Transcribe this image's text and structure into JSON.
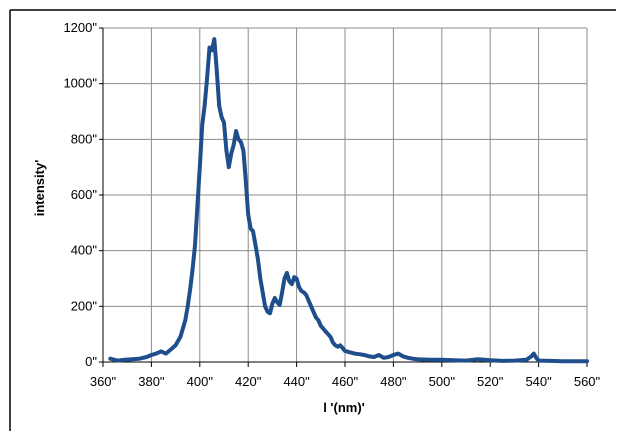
{
  "chart_data": {
    "type": "line",
    "title": "",
    "xlabel": "l '(nm)'",
    "ylabel": "intensity'",
    "xlim": [
      360,
      560
    ],
    "ylim": [
      0,
      1200
    ],
    "grid": true,
    "legend": "none",
    "x_ticks": [
      "360\"",
      "380\"",
      "400\"",
      "420\"",
      "440\"",
      "460\"",
      "480\"",
      "500\"",
      "520\"",
      "540\"",
      "560\""
    ],
    "y_ticks": [
      "0\"",
      "200\"",
      "400\"",
      "600\"",
      "800\"",
      "1000\"",
      "1200\""
    ],
    "colors": {
      "series": "#1f4e8c",
      "grid": "#8c8c8c",
      "axis": "#000000"
    },
    "series": [
      {
        "x": [
          363,
          366,
          369,
          372,
          375,
          378,
          380,
          382,
          384,
          386,
          388,
          390,
          392,
          394,
          395,
          396,
          397,
          398,
          399,
          400,
          401,
          402,
          403,
          404,
          405,
          406,
          407,
          408,
          409,
          410,
          411,
          412,
          413,
          414,
          415,
          416,
          417,
          418,
          419,
          420,
          421,
          422,
          423,
          424,
          425,
          426,
          427,
          428,
          429,
          430,
          431,
          432,
          433,
          434,
          435,
          436,
          437,
          438,
          439,
          440,
          441,
          442,
          443,
          444,
          445,
          446,
          447,
          448,
          449,
          450,
          451,
          452,
          453,
          454,
          455,
          456,
          457,
          458,
          459,
          460,
          462,
          464,
          466,
          468,
          470,
          472,
          474,
          476,
          478,
          480,
          482,
          484,
          486,
          488,
          490,
          495,
          500,
          505,
          510,
          515,
          520,
          525,
          530,
          535,
          537,
          538,
          539,
          540,
          545,
          550,
          555,
          560
        ],
        "y": [
          12,
          5,
          8,
          10,
          12,
          18,
          25,
          30,
          38,
          30,
          45,
          60,
          90,
          150,
          200,
          260,
          330,
          420,
          560,
          700,
          850,
          920,
          1020,
          1130,
          1120,
          1160,
          1050,
          920,
          880,
          860,
          760,
          700,
          750,
          780,
          830,
          800,
          790,
          760,
          650,
          530,
          480,
          470,
          420,
          370,
          300,
          250,
          200,
          180,
          175,
          210,
          230,
          215,
          205,
          250,
          300,
          320,
          290,
          280,
          305,
          300,
          270,
          255,
          250,
          240,
          220,
          200,
          180,
          160,
          150,
          130,
          120,
          110,
          100,
          90,
          70,
          60,
          55,
          60,
          50,
          40,
          35,
          30,
          28,
          25,
          20,
          18,
          25,
          15,
          18,
          25,
          30,
          20,
          15,
          12,
          10,
          8,
          8,
          6,
          5,
          10,
          6,
          4,
          5,
          8,
          20,
          30,
          15,
          5,
          4,
          3,
          3,
          3
        ]
      }
    ]
  }
}
